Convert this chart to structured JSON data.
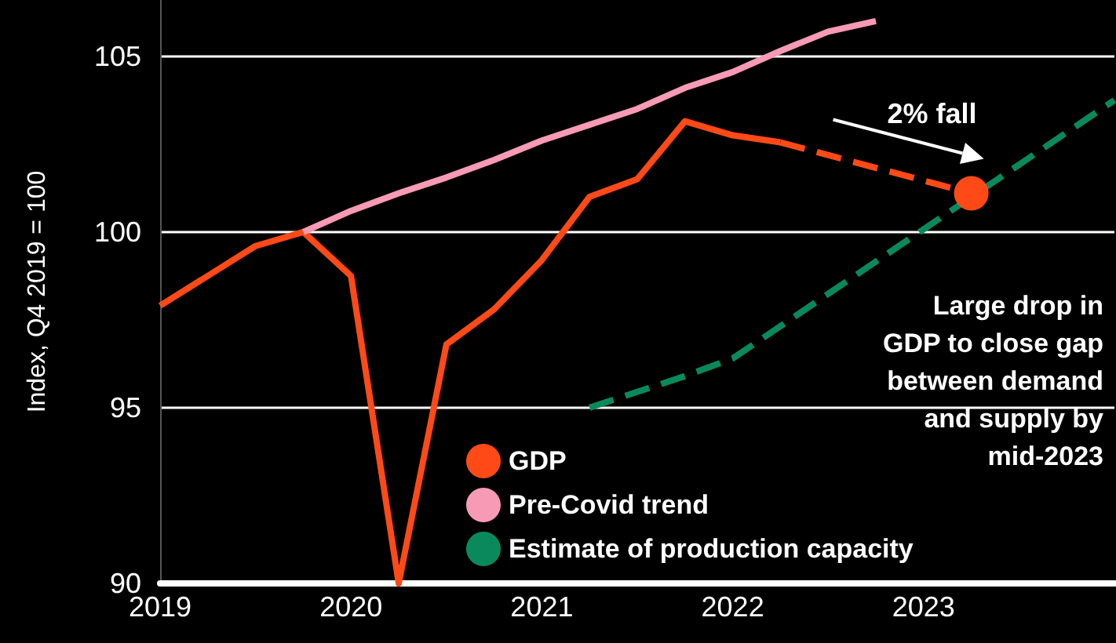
{
  "chart_data": {
    "type": "line",
    "ylabel": "Index, Q4 2019 = 100",
    "xlim": [
      2019,
      2024
    ],
    "xticks": [
      2019,
      2020,
      2021,
      2022,
      2023
    ],
    "ylim": [
      90,
      106.6
    ],
    "yticks": [
      90,
      95,
      100,
      105
    ],
    "grid": "y",
    "legend": "bottom",
    "marker": "none",
    "series": [
      {
        "name": "GDP",
        "color": "#ff4a17",
        "line_style": "solid",
        "x": [
          2019,
          2019.5,
          2019.75,
          2020,
          2020.25,
          2020.5,
          2020.75,
          2021,
          2021.25,
          2021.5,
          2021.75,
          2022,
          2022.25
        ],
        "values": [
          97.9,
          99.6,
          100,
          98.75,
          90,
          96.8,
          97.8,
          99.2,
          101,
          101.5,
          103.15,
          102.75,
          102.55
        ]
      },
      {
        "color": "#ff4a17",
        "line_style": "dashed",
        "x": [
          2022.25,
          2023.25
        ],
        "values": [
          102.55,
          101.1
        ]
      },
      {
        "name": "Pre-Covid trend",
        "color": "#f79ab5",
        "line_style": "solid",
        "x": [
          2019.75,
          2020,
          2020.25,
          2020.5,
          2020.75,
          2021,
          2021.25,
          2021.5,
          2021.75,
          2022,
          2022.25,
          2022.5,
          2022.75
        ],
        "values": [
          100,
          100.6,
          101.1,
          101.55,
          102.05,
          102.6,
          103.05,
          103.5,
          104.1,
          104.55,
          105.15,
          105.7,
          106
        ]
      },
      {
        "name": "Estimate of production capacity",
        "color": "#0a8a5c",
        "line_style": "dashed",
        "x": [
          2021.25,
          2021.75,
          2022,
          2024
        ],
        "values": [
          95,
          95.9,
          96.4,
          103.75
        ]
      },
      {
        "type": "scatter",
        "color": "#ff4a17",
        "marker": "circle",
        "x": [
          2023.25
        ],
        "values": [
          101.1
        ]
      }
    ],
    "annotations": [
      {
        "text": "2% fall",
        "x": 2023.25,
        "y": 101.1
      },
      "Large drop in\nGDP to close gap\nbetween demand\nand supply by\nmid-2023"
    ]
  }
}
